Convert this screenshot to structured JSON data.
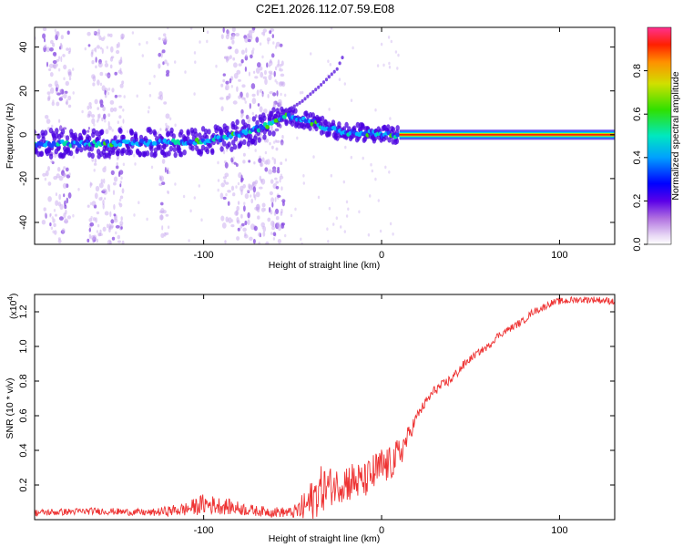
{
  "title": "C2E1.2026.112.07.59.E08",
  "chart_data": [
    {
      "type": "heatmap",
      "name": "spectrogram",
      "xlabel": "Height of straight line (km)",
      "ylabel": "Frequency (Hz)",
      "xlim": [
        -195,
        131
      ],
      "ylim": [
        -50,
        49
      ],
      "x_ticks": [
        -100,
        0,
        100
      ],
      "y_ticks": [
        -40,
        -20,
        0,
        20,
        40
      ],
      "ridge": {
        "description": "dominant frequency track vs height",
        "x": [
          -195,
          -160,
          -130,
          -100,
          -80,
          -65,
          -55,
          -50,
          -40,
          -30,
          -20,
          -10,
          0,
          5,
          10,
          131
        ],
        "frequency": [
          -4,
          -4,
          -3.5,
          -3,
          0,
          4,
          9,
          8,
          6,
          3,
          1,
          1,
          0,
          0,
          0,
          0
        ]
      },
      "branch": {
        "x": [
          -55,
          -45,
          -35,
          -25,
          -21
        ],
        "frequency": [
          10,
          15,
          22,
          30,
          37
        ]
      },
      "stable_band": {
        "x_start": 10,
        "x_end": 131,
        "frequency": 0
      },
      "noise_columns": [
        [
          -190,
          -175
        ],
        [
          -165,
          -145
        ],
        [
          -125,
          -120
        ],
        [
          -90,
          -55
        ]
      ],
      "colorbar": {
        "label": "Normalized spectral amplitude",
        "range": [
          0,
          1
        ],
        "ticks": [
          "0.0",
          "0.2",
          "0.4",
          "0.6",
          "0.8"
        ]
      }
    },
    {
      "type": "line",
      "name": "snr",
      "xlabel": "Height of straight line (km)",
      "ylabel": "SNR (10 * v/v)",
      "y_multiplier": "(x10",
      "y_multiplier_exp": "4",
      "y_multiplier_close": ")",
      "xlim": [
        -195,
        131
      ],
      "ylim": [
        0,
        1.3
      ],
      "x_ticks": [
        -100,
        0,
        100
      ],
      "y_ticks": [
        0.2,
        0.4,
        0.6,
        0.8,
        1.0,
        1.2
      ],
      "y_tick_labels": [
        "0.2",
        "0.4",
        "0.6",
        "0.8",
        "1.0",
        "1.2"
      ],
      "series": [
        {
          "name": "SNR",
          "color": "#ee3333",
          "x": [
            -195,
            -160,
            -130,
            -110,
            -100,
            -90,
            -70,
            -50,
            -45,
            -40,
            -35,
            -30,
            -25,
            -20,
            -15,
            -10,
            -5,
            0,
            5,
            10,
            15,
            20,
            25,
            30,
            35,
            40,
            45,
            50,
            55,
            60,
            65,
            70,
            75,
            80,
            85,
            90,
            95,
            100,
            110,
            120,
            131
          ],
          "y": [
            0.04,
            0.05,
            0.04,
            0.06,
            0.09,
            0.08,
            0.05,
            0.04,
            0.06,
            0.1,
            0.17,
            0.19,
            0.2,
            0.22,
            0.22,
            0.22,
            0.26,
            0.3,
            0.32,
            0.38,
            0.48,
            0.6,
            0.68,
            0.75,
            0.78,
            0.82,
            0.88,
            0.93,
            0.97,
            1.0,
            1.06,
            1.09,
            1.12,
            1.15,
            1.2,
            1.22,
            1.25,
            1.26,
            1.27,
            1.27,
            1.26
          ],
          "noise": [
            0.02,
            0.02,
            0.02,
            0.04,
            0.06,
            0.05,
            0.03,
            0.03,
            0.08,
            0.12,
            0.14,
            0.12,
            0.1,
            0.12,
            0.12,
            0.1,
            0.12,
            0.12,
            0.1,
            0.1,
            0.06,
            0.03,
            0.03,
            0.03,
            0.03,
            0.03,
            0.03,
            0.02,
            0.02,
            0.02,
            0.02,
            0.02,
            0.02,
            0.02,
            0.02,
            0.02,
            0.02,
            0.02,
            0.02,
            0.02,
            0.02
          ]
        }
      ]
    }
  ]
}
